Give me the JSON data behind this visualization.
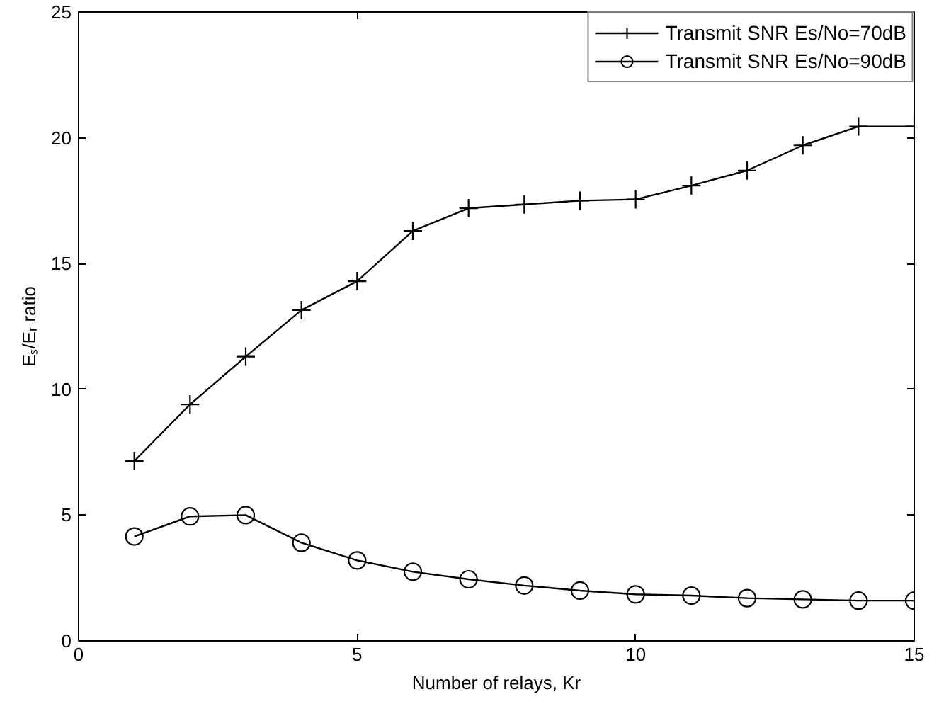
{
  "chart_data": {
    "type": "line",
    "xlabel": "Number of relays, Kr",
    "ylabel": "Eₛ/Eᵣ ratio",
    "x": [
      1,
      2,
      3,
      4,
      5,
      6,
      7,
      8,
      9,
      10,
      11,
      12,
      13,
      14,
      15
    ],
    "series": [
      {
        "name": "Transmit SNR Es/No=70dB",
        "color": "#000000",
        "marker": "cross",
        "values": [
          7.15,
          9.4,
          11.3,
          13.15,
          14.3,
          16.3,
          17.2,
          17.35,
          17.5,
          17.55,
          18.1,
          18.7,
          19.7,
          20.45,
          20.45
        ]
      },
      {
        "name": "Transmit SNR Es/No=90dB",
        "color": "#000000",
        "marker": "circle",
        "values": [
          4.15,
          4.95,
          5.0,
          3.9,
          3.2,
          2.75,
          2.45,
          2.2,
          2.0,
          1.85,
          1.8,
          1.7,
          1.65,
          1.6,
          1.6
        ]
      }
    ],
    "xlim": [
      0,
      15
    ],
    "ylim": [
      0,
      25
    ],
    "xticks": [
      0,
      5,
      10,
      15
    ],
    "yticks": [
      0,
      5,
      10,
      15,
      20,
      25
    ],
    "grid": false,
    "legend": "top right",
    "line_style": "solid"
  }
}
